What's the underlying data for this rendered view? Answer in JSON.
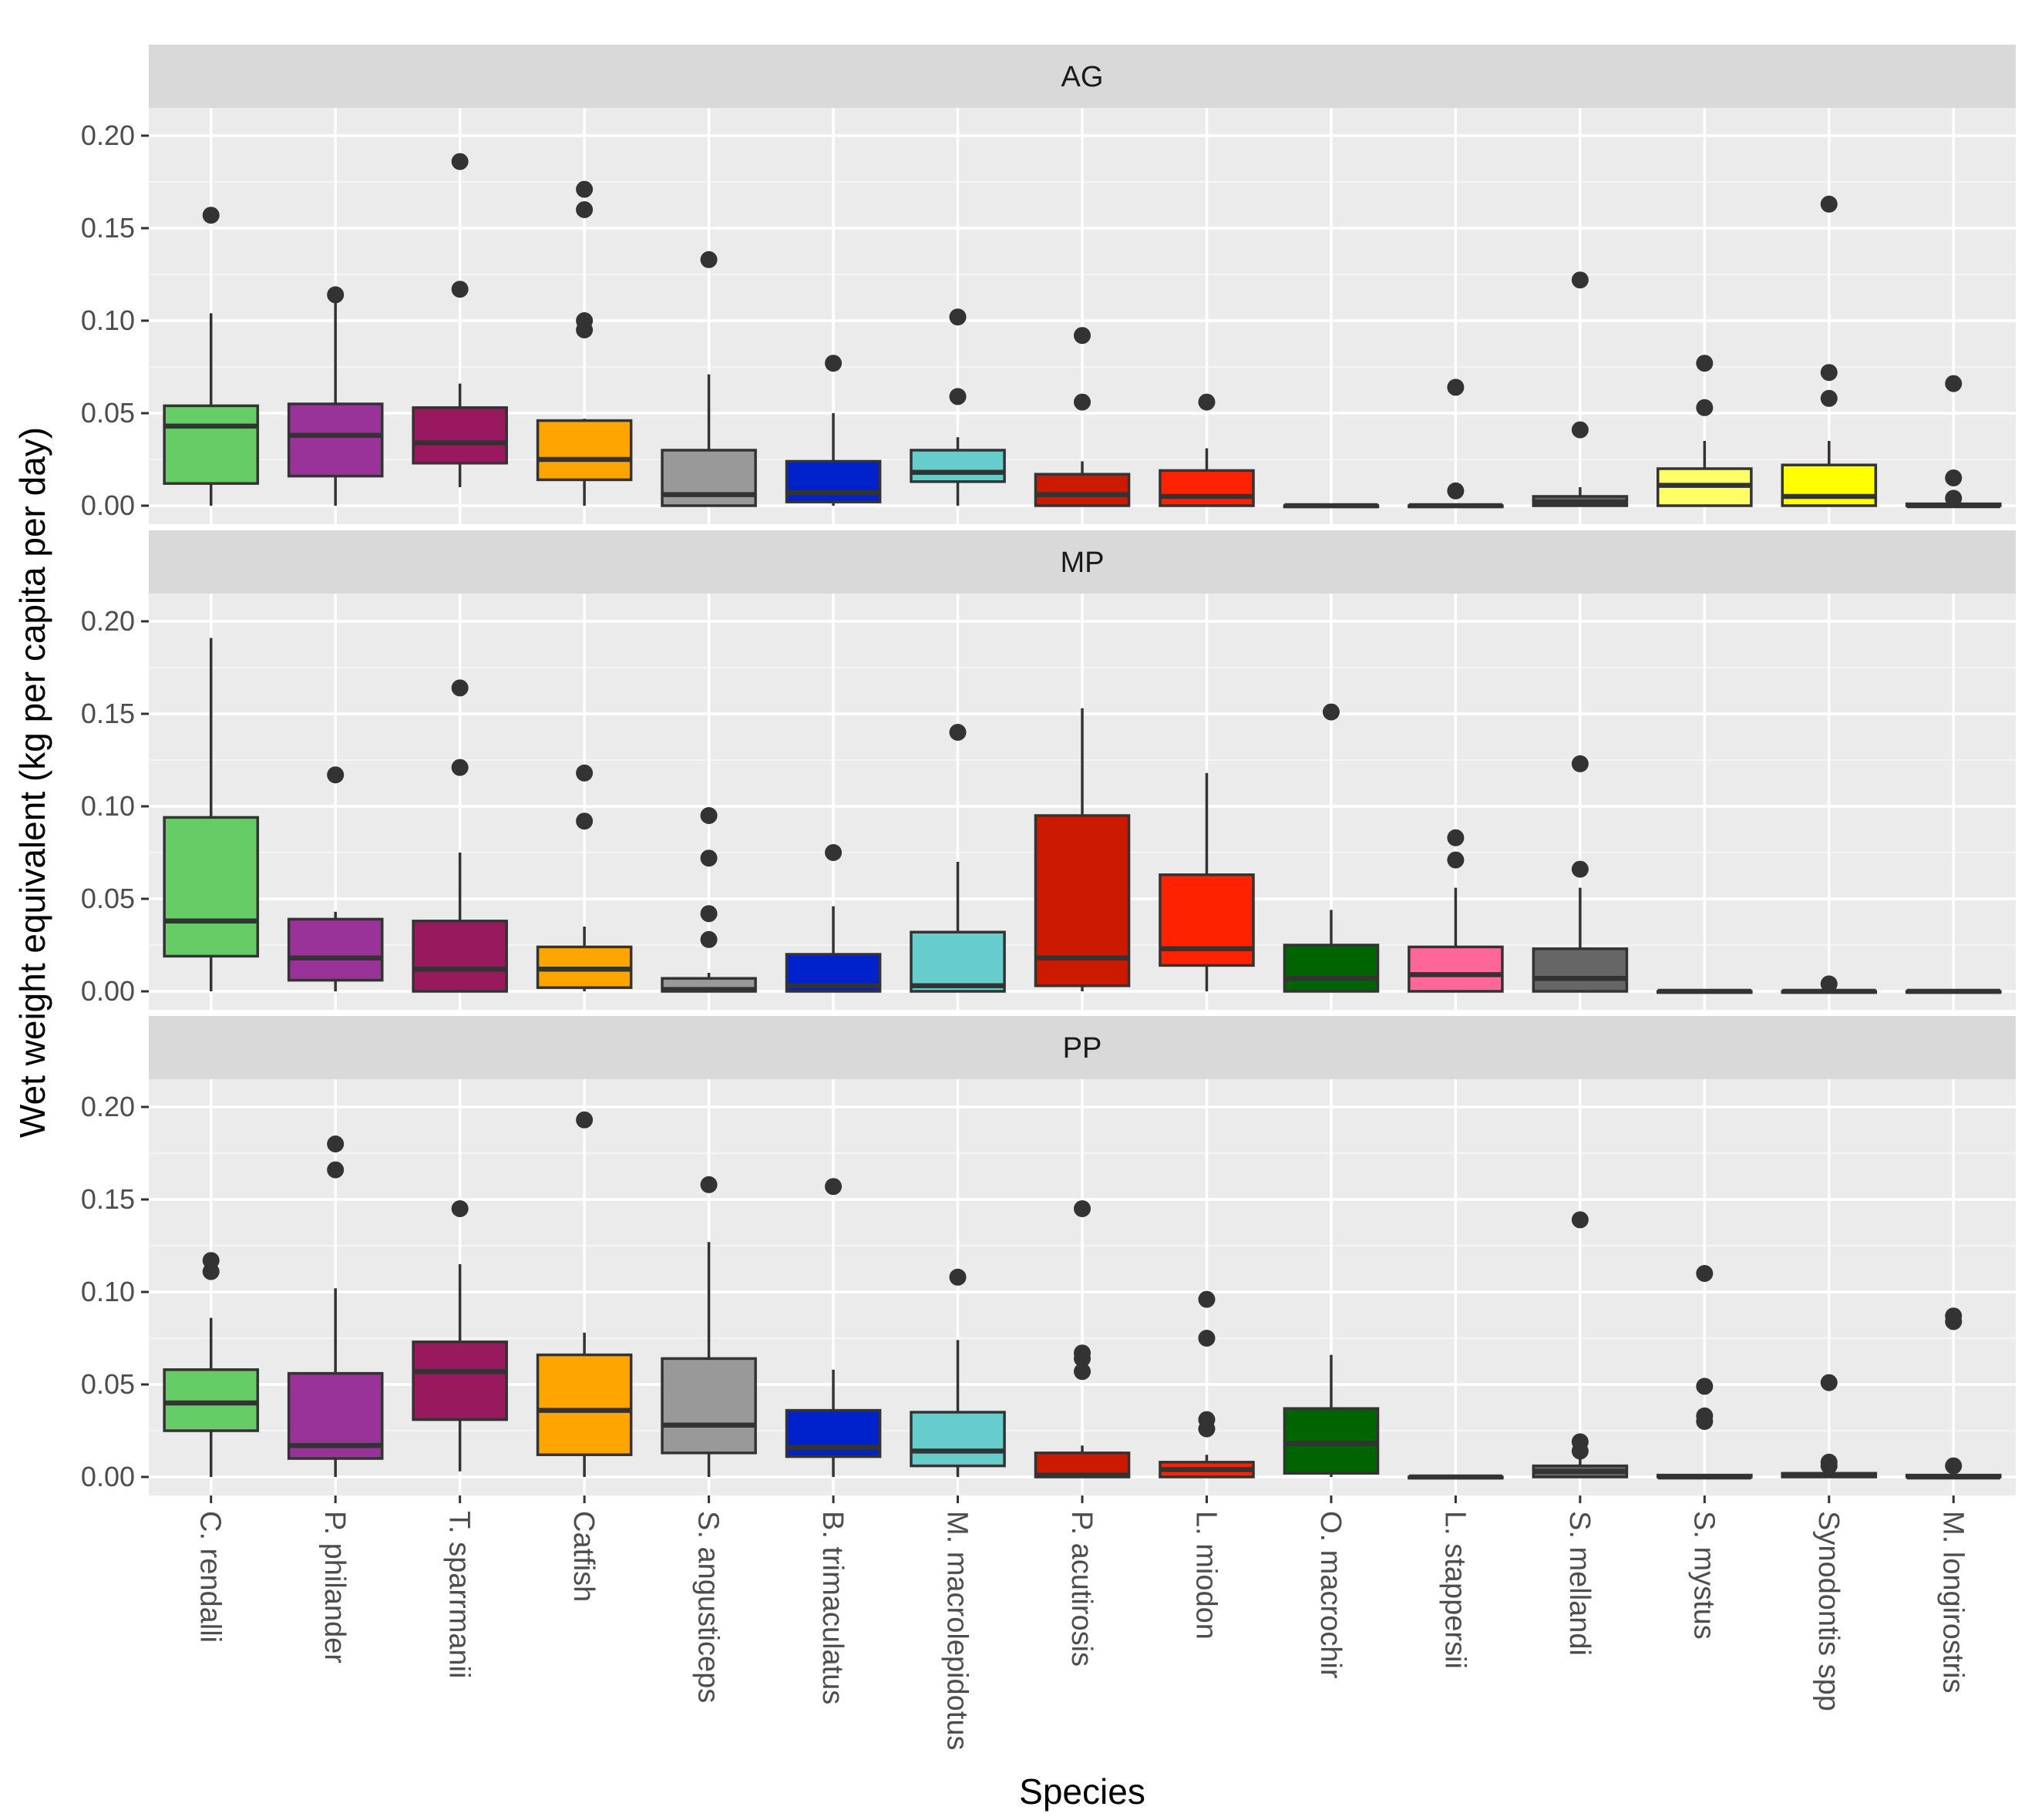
{
  "chart_data": {
    "type": "boxplot",
    "xlabel": "Species",
    "ylabel": "Wet weight equivalent (kg per capita per day)",
    "ylim": [
      -0.01,
      0.215
    ],
    "yticks": [
      0.0,
      0.05,
      0.1,
      0.15,
      0.2
    ],
    "ytick_labels": [
      "0.00",
      "0.05",
      "0.10",
      "0.15",
      "0.20"
    ],
    "categories": [
      "C. rendalli",
      "P. philander",
      "T. sparrmanii",
      "Catfish",
      "S. angusticeps",
      "B. trimaculatus",
      "M. macrolepidotus",
      "P. acutirosis",
      "L. miodon",
      "O. macrochir",
      "L. stappersii",
      "S. mellandi",
      "S. mystus",
      "Synodontis spp",
      "M. longirostris"
    ],
    "colors": [
      "#66CC66",
      "#993399",
      "#99195E",
      "#FFA500",
      "#999999",
      "#0022CC",
      "#66CCCC",
      "#CC1A00",
      "#FF2200",
      "#006400",
      "#FF6699",
      "#666666",
      "#FFFF66",
      "#FFFF00",
      "#FFFFFF"
    ],
    "panels": [
      {
        "label": "AG",
        "boxes": [
          {
            "q1": 0.012,
            "median": 0.043,
            "q3": 0.054,
            "wlo": 0.0,
            "whi": 0.104,
            "outliers": [
              0.157
            ]
          },
          {
            "q1": 0.016,
            "median": 0.038,
            "q3": 0.055,
            "wlo": 0.0,
            "whi": 0.11,
            "outliers": [
              0.114
            ]
          },
          {
            "q1": 0.023,
            "median": 0.034,
            "q3": 0.053,
            "wlo": 0.01,
            "whi": 0.066,
            "outliers": [
              0.117,
              0.186
            ]
          },
          {
            "q1": 0.014,
            "median": 0.025,
            "q3": 0.046,
            "wlo": 0.0,
            "whi": 0.047,
            "outliers": [
              0.095,
              0.1,
              0.16,
              0.171
            ]
          },
          {
            "q1": 0.0,
            "median": 0.006,
            "q3": 0.03,
            "wlo": 0.0,
            "whi": 0.071,
            "outliers": [
              0.133
            ]
          },
          {
            "q1": 0.002,
            "median": 0.007,
            "q3": 0.024,
            "wlo": 0.0,
            "whi": 0.05,
            "outliers": [
              0.077
            ]
          },
          {
            "q1": 0.013,
            "median": 0.018,
            "q3": 0.03,
            "wlo": 0.0,
            "whi": 0.037,
            "outliers": [
              0.059,
              0.102
            ]
          },
          {
            "q1": 0.0,
            "median": 0.006,
            "q3": 0.017,
            "wlo": 0.0,
            "whi": 0.024,
            "outliers": [
              0.056,
              0.092
            ]
          },
          {
            "q1": 0.0,
            "median": 0.005,
            "q3": 0.019,
            "wlo": 0.0,
            "whi": 0.031,
            "outliers": [
              0.056
            ]
          },
          {
            "q1": 0.0,
            "median": 0.0,
            "q3": 0.0,
            "wlo": 0.0,
            "whi": 0.0,
            "outliers": []
          },
          {
            "q1": 0.0,
            "median": 0.0,
            "q3": 0.0,
            "wlo": 0.0,
            "whi": 0.0,
            "outliers": [
              0.008,
              0.064
            ]
          },
          {
            "q1": 0.0,
            "median": 0.002,
            "q3": 0.005,
            "wlo": 0.0,
            "whi": 0.01,
            "outliers": [
              0.041,
              0.122
            ]
          },
          {
            "q1": 0.0,
            "median": 0.011,
            "q3": 0.02,
            "wlo": 0.0,
            "whi": 0.035,
            "outliers": [
              0.053,
              0.077
            ]
          },
          {
            "q1": 0.0,
            "median": 0.005,
            "q3": 0.022,
            "wlo": 0.0,
            "whi": 0.035,
            "outliers": [
              0.058,
              0.072,
              0.163
            ]
          },
          {
            "q1": 0.0,
            "median": 0.0,
            "q3": 0.001,
            "wlo": 0.0,
            "whi": 0.001,
            "outliers": [
              0.004,
              0.015,
              0.066
            ]
          }
        ]
      },
      {
        "label": "MP",
        "boxes": [
          {
            "q1": 0.019,
            "median": 0.038,
            "q3": 0.094,
            "wlo": 0.0,
            "whi": 0.191,
            "outliers": []
          },
          {
            "q1": 0.006,
            "median": 0.018,
            "q3": 0.039,
            "wlo": 0.0,
            "whi": 0.043,
            "outliers": [
              0.117
            ]
          },
          {
            "q1": 0.0,
            "median": 0.012,
            "q3": 0.038,
            "wlo": 0.0,
            "whi": 0.075,
            "outliers": [
              0.121,
              0.164
            ]
          },
          {
            "q1": 0.002,
            "median": 0.012,
            "q3": 0.024,
            "wlo": 0.0,
            "whi": 0.035,
            "outliers": [
              0.092,
              0.118
            ]
          },
          {
            "q1": 0.0,
            "median": 0.001,
            "q3": 0.007,
            "wlo": 0.0,
            "whi": 0.01,
            "outliers": [
              0.028,
              0.042,
              0.072,
              0.095
            ]
          },
          {
            "q1": 0.0,
            "median": 0.003,
            "q3": 0.02,
            "wlo": 0.0,
            "whi": 0.046,
            "outliers": [
              0.075
            ]
          },
          {
            "q1": 0.0,
            "median": 0.003,
            "q3": 0.032,
            "wlo": 0.0,
            "whi": 0.07,
            "outliers": [
              0.14
            ]
          },
          {
            "q1": 0.003,
            "median": 0.018,
            "q3": 0.095,
            "wlo": 0.0,
            "whi": 0.153,
            "outliers": []
          },
          {
            "q1": 0.014,
            "median": 0.023,
            "q3": 0.063,
            "wlo": 0.0,
            "whi": 0.118,
            "outliers": []
          },
          {
            "q1": 0.0,
            "median": 0.007,
            "q3": 0.025,
            "wlo": 0.0,
            "whi": 0.044,
            "outliers": [
              0.151
            ]
          },
          {
            "q1": 0.0,
            "median": 0.009,
            "q3": 0.024,
            "wlo": 0.0,
            "whi": 0.056,
            "outliers": [
              0.071,
              0.083
            ]
          },
          {
            "q1": 0.0,
            "median": 0.007,
            "q3": 0.023,
            "wlo": 0.0,
            "whi": 0.056,
            "outliers": [
              0.066,
              0.123
            ]
          },
          {
            "q1": 0.0,
            "median": 0.0,
            "q3": 0.0,
            "wlo": 0.0,
            "whi": 0.0,
            "outliers": []
          },
          {
            "q1": 0.0,
            "median": 0.0,
            "q3": 0.0,
            "wlo": 0.0,
            "whi": 0.0,
            "outliers": [
              0.004
            ]
          },
          {
            "q1": 0.0,
            "median": 0.0,
            "q3": 0.0,
            "wlo": 0.0,
            "whi": 0.0,
            "outliers": []
          }
        ]
      },
      {
        "label": "PP",
        "boxes": [
          {
            "q1": 0.025,
            "median": 0.04,
            "q3": 0.058,
            "wlo": 0.0,
            "whi": 0.086,
            "outliers": [
              0.111,
              0.117
            ]
          },
          {
            "q1": 0.01,
            "median": 0.017,
            "q3": 0.056,
            "wlo": 0.0,
            "whi": 0.102,
            "outliers": [
              0.166,
              0.18
            ]
          },
          {
            "q1": 0.031,
            "median": 0.057,
            "q3": 0.073,
            "wlo": 0.003,
            "whi": 0.115,
            "outliers": [
              0.145
            ]
          },
          {
            "q1": 0.012,
            "median": 0.036,
            "q3": 0.066,
            "wlo": 0.0,
            "whi": 0.078,
            "outliers": [
              0.193
            ]
          },
          {
            "q1": 0.013,
            "median": 0.028,
            "q3": 0.064,
            "wlo": 0.0,
            "whi": 0.127,
            "outliers": [
              0.158
            ]
          },
          {
            "q1": 0.011,
            "median": 0.016,
            "q3": 0.036,
            "wlo": 0.0,
            "whi": 0.058,
            "outliers": [
              0.157
            ]
          },
          {
            "q1": 0.006,
            "median": 0.014,
            "q3": 0.035,
            "wlo": 0.0,
            "whi": 0.074,
            "outliers": [
              0.108
            ]
          },
          {
            "q1": 0.0,
            "median": 0.001,
            "q3": 0.013,
            "wlo": 0.0,
            "whi": 0.017,
            "outliers": [
              0.057,
              0.064,
              0.067,
              0.145
            ]
          },
          {
            "q1": 0.0,
            "median": 0.004,
            "q3": 0.008,
            "wlo": 0.0,
            "whi": 0.012,
            "outliers": [
              0.026,
              0.031,
              0.075,
              0.096
            ]
          },
          {
            "q1": 0.002,
            "median": 0.018,
            "q3": 0.037,
            "wlo": 0.0,
            "whi": 0.066,
            "outliers": []
          },
          {
            "q1": 0.0,
            "median": 0.0,
            "q3": 0.0,
            "wlo": 0.0,
            "whi": 0.0,
            "outliers": []
          },
          {
            "q1": 0.0,
            "median": 0.003,
            "q3": 0.006,
            "wlo": 0.0,
            "whi": 0.01,
            "outliers": [
              0.014,
              0.019,
              0.139
            ]
          },
          {
            "q1": 0.0,
            "median": 0.0,
            "q3": 0.001,
            "wlo": 0.0,
            "whi": 0.001,
            "outliers": [
              0.03,
              0.033,
              0.049,
              0.11
            ]
          },
          {
            "q1": 0.0,
            "median": 0.001,
            "q3": 0.002,
            "wlo": 0.0,
            "whi": 0.003,
            "outliers": [
              0.006,
              0.008,
              0.051
            ]
          },
          {
            "q1": 0.0,
            "median": 0.0,
            "q3": 0.001,
            "wlo": 0.0,
            "whi": 0.001,
            "outliers": [
              0.006,
              0.084,
              0.087
            ]
          }
        ]
      }
    ]
  }
}
